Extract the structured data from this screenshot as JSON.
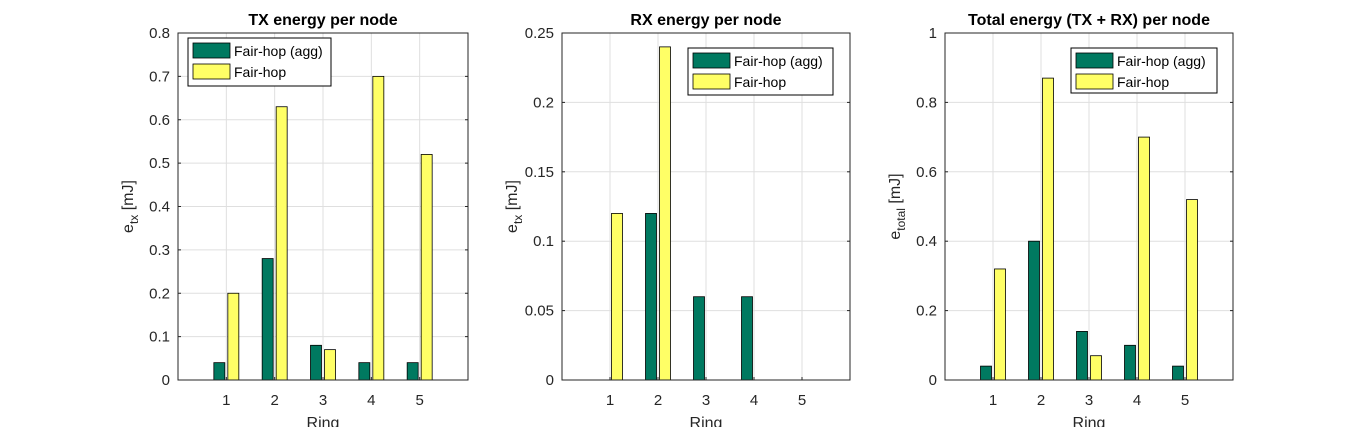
{
  "colors": {
    "agg": "#007960",
    "fair": "#FFFF66",
    "axis": "#262626",
    "grid": "#dfdfdf"
  },
  "chart_data": [
    {
      "type": "bar",
      "title": "TX energy per node",
      "xlabel": "Ring",
      "ylabel": {
        "main": "e",
        "sub": "tx",
        "unit": " [mJ]"
      },
      "categories": [
        "1",
        "2",
        "3",
        "4",
        "5"
      ],
      "ylim": [
        0,
        0.8
      ],
      "yticks": [
        "0",
        "0.1",
        "0.2",
        "0.3",
        "0.4",
        "0.5",
        "0.6",
        "0.7",
        "0.8"
      ],
      "grid": true,
      "legend_position": "top-left",
      "series": [
        {
          "name": "Fair-hop (agg)",
          "values": [
            0.04,
            0.28,
            0.08,
            0.04,
            0.04
          ]
        },
        {
          "name": "Fair-hop",
          "values": [
            0.2,
            0.63,
            0.07,
            0.7,
            0.52
          ]
        }
      ]
    },
    {
      "type": "bar",
      "title": "RX energy per node",
      "xlabel": "Ring",
      "ylabel": {
        "main": "e",
        "sub": "tx",
        "unit": " [mJ]"
      },
      "categories": [
        "1",
        "2",
        "3",
        "4",
        "5"
      ],
      "ylim": [
        0,
        0.25
      ],
      "yticks": [
        "0",
        "0.05",
        "0.1",
        "0.15",
        "0.2",
        "0.25"
      ],
      "grid": true,
      "legend_position": "top-right",
      "series": [
        {
          "name": "Fair-hop (agg)",
          "values": [
            0,
            0.12,
            0.06,
            0.06,
            0
          ]
        },
        {
          "name": "Fair-hop",
          "values": [
            0.12,
            0.24,
            0,
            0,
            0
          ]
        }
      ]
    },
    {
      "type": "bar",
      "title": "Total energy (TX + RX) per node",
      "xlabel": "Ring",
      "ylabel": {
        "main": "e",
        "sub": "total",
        "unit": " [mJ]"
      },
      "categories": [
        "1",
        "2",
        "3",
        "4",
        "5"
      ],
      "ylim": [
        0,
        1
      ],
      "yticks": [
        "0",
        "0.2",
        "0.4",
        "0.6",
        "0.8",
        "1"
      ],
      "grid": true,
      "legend_position": "top-right",
      "series": [
        {
          "name": "Fair-hop (agg)",
          "values": [
            0.04,
            0.4,
            0.14,
            0.1,
            0.04
          ]
        },
        {
          "name": "Fair-hop",
          "values": [
            0.32,
            0.87,
            0.07,
            0.7,
            0.52
          ]
        }
      ]
    }
  ]
}
